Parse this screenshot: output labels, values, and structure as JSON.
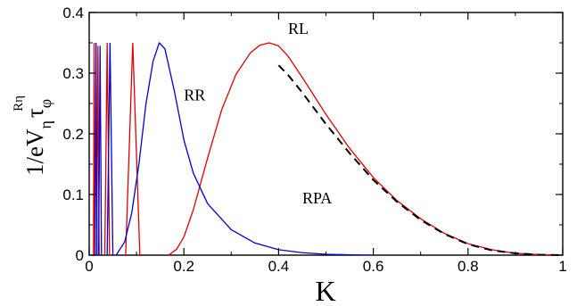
{
  "chart_data": {
    "type": "line",
    "xlabel": "K",
    "ylabel": {
      "main": "1/eV",
      "sub_eta": "η",
      "tau": "τ",
      "sub_phi": "φ",
      "sup": "Rη"
    },
    "xlim": [
      0,
      1
    ],
    "ylim": [
      0,
      0.4
    ],
    "x_ticks": [
      0,
      0.2,
      0.4,
      0.6,
      0.8,
      1
    ],
    "x_tick_labels": [
      "0",
      "0.2",
      "0.4",
      "0.6",
      "0.8",
      "1"
    ],
    "y_ticks": [
      0,
      0.1,
      0.2,
      0.3,
      0.4
    ],
    "y_tick_labels": [
      "0",
      "0.1",
      "0.2",
      "0.3",
      "0.4"
    ],
    "grid": false,
    "annotations": [
      {
        "text": "RL",
        "x": 0.42,
        "y": 0.365
      },
      {
        "text": "RR",
        "x": 0.2,
        "y": 0.255
      },
      {
        "text": "RPA",
        "x": 0.45,
        "y": 0.085
      }
    ],
    "series": [
      {
        "color": "#e00000",
        "style": "solid",
        "peaks": [
          {
            "center": 0.0105,
            "half_width": 0.0015,
            "height": 0.35
          },
          {
            "center": 0.0185,
            "half_width": 0.0025,
            "height": 0.345
          },
          {
            "center": 0.038,
            "half_width": 0.005,
            "height": 0.35
          },
          {
            "center": 0.092,
            "half_width": 0.015,
            "height": 0.35
          }
        ],
        "points": [
          [
            0.168,
            0
          ],
          [
            0.185,
            0.01
          ],
          [
            0.2,
            0.03
          ],
          [
            0.22,
            0.075
          ],
          [
            0.25,
            0.16
          ],
          [
            0.28,
            0.24
          ],
          [
            0.31,
            0.298
          ],
          [
            0.34,
            0.333
          ],
          [
            0.36,
            0.346
          ],
          [
            0.38,
            0.35
          ],
          [
            0.4,
            0.345
          ],
          [
            0.42,
            0.328
          ],
          [
            0.45,
            0.293
          ],
          [
            0.5,
            0.232
          ],
          [
            0.55,
            0.176
          ],
          [
            0.6,
            0.128
          ],
          [
            0.65,
            0.09
          ],
          [
            0.7,
            0.06
          ],
          [
            0.75,
            0.036
          ],
          [
            0.8,
            0.019
          ],
          [
            0.85,
            0.009
          ],
          [
            0.9,
            0.003
          ],
          [
            0.95,
            0.0008
          ],
          [
            1.0,
            0
          ]
        ]
      },
      {
        "color": "#0000d0",
        "style": "solid",
        "peaks": [
          {
            "center": 0.0145,
            "half_width": 0.002,
            "height": 0.35
          },
          {
            "center": 0.023,
            "half_width": 0.003,
            "height": 0.345
          },
          {
            "center": 0.044,
            "half_width": 0.006,
            "height": 0.35
          }
        ],
        "points": [
          [
            0.057,
            0
          ],
          [
            0.075,
            0.022
          ],
          [
            0.09,
            0.07
          ],
          [
            0.105,
            0.15
          ],
          [
            0.12,
            0.25
          ],
          [
            0.135,
            0.32
          ],
          [
            0.148,
            0.35
          ],
          [
            0.16,
            0.34
          ],
          [
            0.18,
            0.27
          ],
          [
            0.2,
            0.19
          ],
          [
            0.22,
            0.135
          ],
          [
            0.25,
            0.085
          ],
          [
            0.3,
            0.042
          ],
          [
            0.35,
            0.02
          ],
          [
            0.4,
            0.009
          ],
          [
            0.45,
            0.004
          ],
          [
            0.5,
            0.0015
          ],
          [
            0.55,
            0.0006
          ],
          [
            0.6,
            0
          ]
        ]
      },
      {
        "color": "#000000",
        "style": "dashed",
        "points": [
          [
            0.4,
            0.313
          ],
          [
            0.42,
            0.297
          ],
          [
            0.45,
            0.268
          ],
          [
            0.5,
            0.216
          ],
          [
            0.55,
            0.168
          ],
          [
            0.6,
            0.124
          ],
          [
            0.65,
            0.088
          ],
          [
            0.7,
            0.058
          ],
          [
            0.75,
            0.035
          ],
          [
            0.8,
            0.018
          ],
          [
            0.85,
            0.008
          ],
          [
            0.9,
            0.003
          ],
          [
            0.95,
            0.0007
          ],
          [
            1.0,
            0
          ]
        ]
      }
    ]
  }
}
